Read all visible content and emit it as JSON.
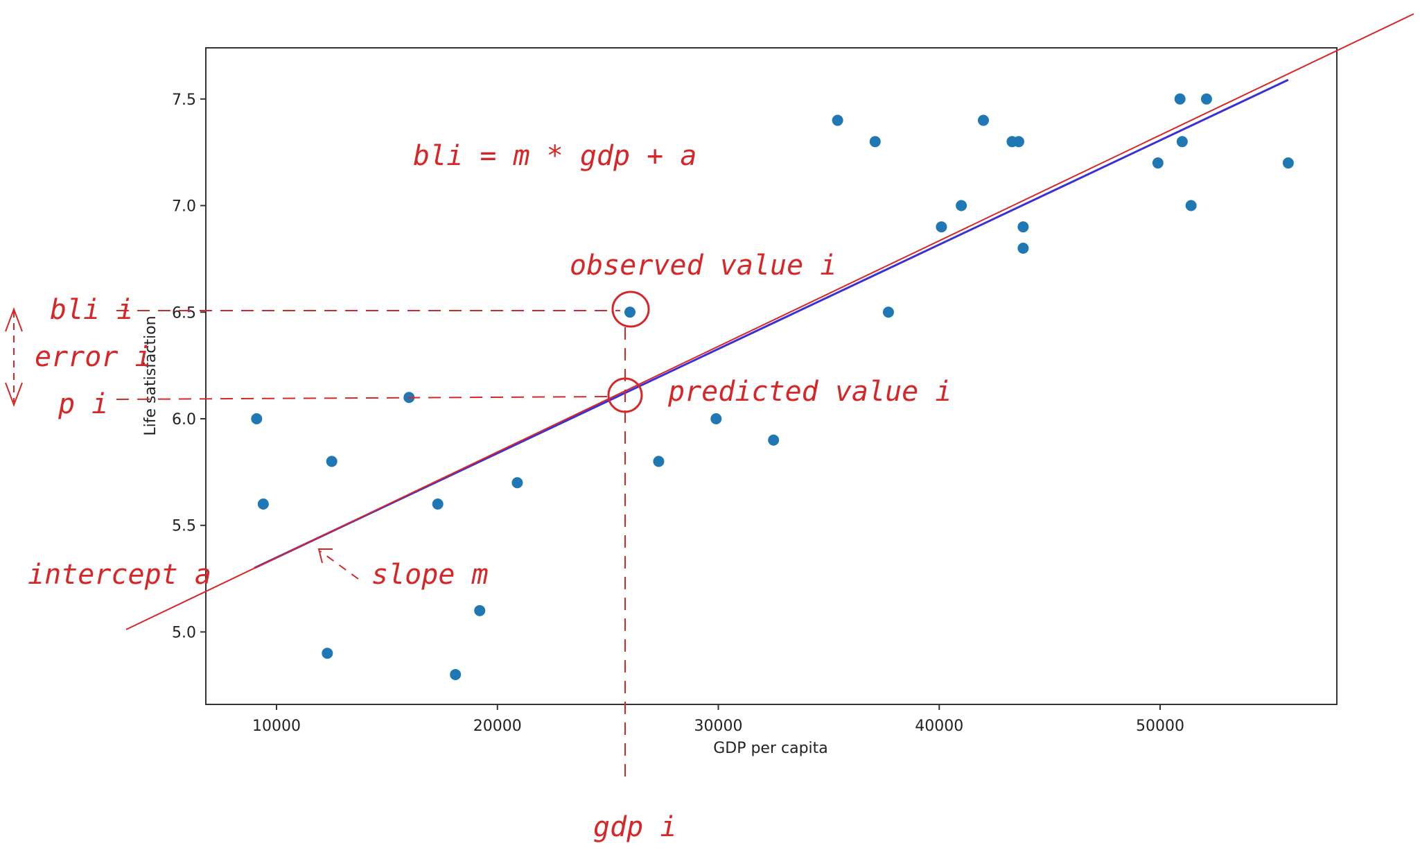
{
  "chart_data": {
    "type": "scatter",
    "xlabel": "GDP per capita",
    "ylabel": "Life satisfaction",
    "xlim": [
      6800,
      58000
    ],
    "ylim": [
      4.66,
      7.74
    ],
    "xticks": [
      10000,
      20000,
      30000,
      40000,
      50000
    ],
    "yticks": [
      5.0,
      5.5,
      6.0,
      6.5,
      7.0,
      7.5
    ],
    "ytick_labels": [
      "5.0",
      "5.5",
      "6.0",
      "6.5",
      "7.0",
      "7.5"
    ],
    "grid": false,
    "points": [
      {
        "x": 9100,
        "y": 6.0
      },
      {
        "x": 9400,
        "y": 5.6
      },
      {
        "x": 12300,
        "y": 4.9
      },
      {
        "x": 12500,
        "y": 5.8
      },
      {
        "x": 16000,
        "y": 6.1
      },
      {
        "x": 17300,
        "y": 5.6
      },
      {
        "x": 18100,
        "y": 4.8
      },
      {
        "x": 19200,
        "y": 5.1
      },
      {
        "x": 20900,
        "y": 5.7
      },
      {
        "x": 26000,
        "y": 6.5
      },
      {
        "x": 27300,
        "y": 5.8
      },
      {
        "x": 29900,
        "y": 6.0
      },
      {
        "x": 32500,
        "y": 5.9
      },
      {
        "x": 35400,
        "y": 7.4
      },
      {
        "x": 37100,
        "y": 7.3
      },
      {
        "x": 37700,
        "y": 6.5
      },
      {
        "x": 40100,
        "y": 6.9
      },
      {
        "x": 41000,
        "y": 7.0
      },
      {
        "x": 42000,
        "y": 7.4
      },
      {
        "x": 43300,
        "y": 7.3
      },
      {
        "x": 43600,
        "y": 7.3
      },
      {
        "x": 43800,
        "y": 6.9
      },
      {
        "x": 43800,
        "y": 6.8
      },
      {
        "x": 49900,
        "y": 7.2
      },
      {
        "x": 50900,
        "y": 7.5
      },
      {
        "x": 51000,
        "y": 7.3
      },
      {
        "x": 51400,
        "y": 7.0
      },
      {
        "x": 52100,
        "y": 7.5
      },
      {
        "x": 55800,
        "y": 7.2
      }
    ],
    "fit_line": {
      "x": [
        9000,
        55800
      ],
      "y": [
        5.3,
        7.59
      ]
    },
    "colors": {
      "points": "#1f77b4",
      "fit_line": "#3b2fd6",
      "annotation": "#d62728",
      "axes": "#333333"
    }
  },
  "annotations": {
    "equation": "bli = m * gdp + a",
    "observed": "observed value i",
    "predicted": "predicted value i",
    "bli_i": "bli i",
    "error_i": "error i",
    "p_i": "p i",
    "intercept": "intercept a",
    "slope": "slope m",
    "gdp_i": "gdp i"
  }
}
